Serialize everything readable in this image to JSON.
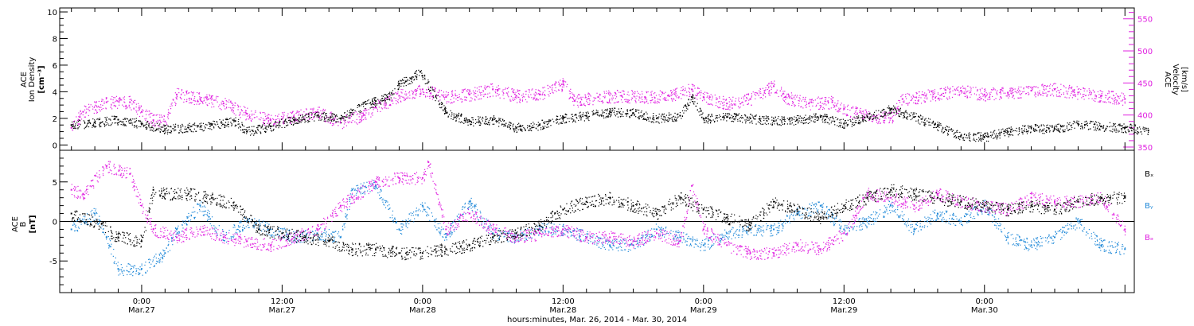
{
  "chart_data": [
    {
      "type": "scatter",
      "panel": "top",
      "y_axis_left": {
        "label_lines": [
          "ACE",
          "Ion Density",
          "[cm⁻³]"
        ],
        "range": [
          -0.4,
          10.3
        ],
        "ticks": [
          0,
          2,
          4,
          6,
          8,
          10
        ],
        "color": "#000000"
      },
      "y_axis_right": {
        "label_lines": [
          "ACE",
          "Velocity",
          "[km/s]"
        ],
        "range": [
          345,
          567
        ],
        "ticks": [
          350,
          400,
          450,
          500,
          550
        ],
        "color": "#e020e0"
      },
      "series": [
        {
          "axis": "left",
          "color": "#000000",
          "points": [
            [
              -6,
              1.5
            ],
            [
              -4,
              1.7
            ],
            [
              -2,
              1.9
            ],
            [
              0,
              1.6
            ],
            [
              2,
              1.2
            ],
            [
              4,
              1.3
            ],
            [
              6,
              1.5
            ],
            [
              8,
              1.8
            ],
            [
              9,
              1.0
            ],
            [
              11,
              1.4
            ],
            [
              13,
              1.9
            ],
            [
              15,
              2.2
            ],
            [
              17,
              2.0
            ],
            [
              18,
              2.6
            ],
            [
              20,
              3.3
            ],
            [
              21,
              3.6
            ],
            [
              22,
              4.6
            ],
            [
              23,
              5.0
            ],
            [
              23.8,
              5.5
            ],
            [
              24,
              5.2
            ],
            [
              26,
              2.4
            ],
            [
              28,
              1.8
            ],
            [
              30,
              1.9
            ],
            [
              32,
              1.3
            ],
            [
              34,
              1.5
            ],
            [
              36,
              2.0
            ],
            [
              38,
              2.2
            ],
            [
              40,
              2.5
            ],
            [
              42,
              2.4
            ],
            [
              44,
              2.0
            ],
            [
              46,
              2.2
            ],
            [
              47,
              3.6
            ],
            [
              48,
              2.0
            ],
            [
              50,
              2.1
            ],
            [
              52,
              2.0
            ],
            [
              54,
              1.8
            ],
            [
              56,
              1.9
            ],
            [
              58,
              2.1
            ],
            [
              60,
              1.6
            ],
            [
              62,
              2.1
            ],
            [
              64,
              2.7
            ],
            [
              66,
              2.1
            ],
            [
              68,
              1.4
            ],
            [
              70,
              0.7
            ],
            [
              72,
              0.6
            ],
            [
              74,
              1.0
            ],
            [
              76,
              1.3
            ],
            [
              78,
              1.2
            ],
            [
              80,
              1.6
            ],
            [
              82,
              1.4
            ],
            [
              84,
              1.3
            ],
            [
              86,
              1.1
            ]
          ]
        },
        {
          "axis": "right",
          "color": "#e020e0",
          "points": [
            [
              -6,
              380
            ],
            [
              -5,
              405
            ],
            [
              -3,
              420
            ],
            [
              -1,
              420
            ],
            [
              0,
              405
            ],
            [
              1,
              392
            ],
            [
              2,
              390
            ],
            [
              3,
              432
            ],
            [
              5,
              425
            ],
            [
              7,
              418
            ],
            [
              9,
              402
            ],
            [
              11,
              392
            ],
            [
              13,
              398
            ],
            [
              15,
              405
            ],
            [
              17,
              388
            ],
            [
              19,
              400
            ],
            [
              20,
              412
            ],
            [
              22,
              430
            ],
            [
              24,
              440
            ],
            [
              26,
              428
            ],
            [
              28,
              432
            ],
            [
              30,
              440
            ],
            [
              32,
              430
            ],
            [
              34,
              432
            ],
            [
              36,
              448
            ],
            [
              37,
              422
            ],
            [
              39,
              428
            ],
            [
              41,
              430
            ],
            [
              43,
              428
            ],
            [
              45,
              430
            ],
            [
              47,
              440
            ],
            [
              48,
              428
            ],
            [
              50,
              418
            ],
            [
              52,
              425
            ],
            [
              54,
              445
            ],
            [
              55,
              428
            ],
            [
              57,
              418
            ],
            [
              59,
              420
            ],
            [
              60,
              410
            ],
            [
              62,
              398
            ],
            [
              64,
              395
            ],
            [
              65,
              425
            ],
            [
              67,
              430
            ],
            [
              70,
              438
            ],
            [
              72,
              432
            ],
            [
              74,
              435
            ],
            [
              76,
              438
            ],
            [
              78,
              440
            ],
            [
              80,
              435
            ],
            [
              82,
              430
            ],
            [
              84,
              425
            ]
          ]
        }
      ]
    },
    {
      "type": "scatter",
      "panel": "bottom",
      "y_axis": {
        "label_lines": [
          "ACE",
          "B",
          "[nT]"
        ],
        "range": [
          -9,
          9
        ],
        "ticks": [
          -5,
          0,
          5
        ]
      },
      "series": [
        {
          "name": "Bₓ",
          "color": "#000000",
          "points": [
            [
              -6,
              1
            ],
            [
              -4,
              0
            ],
            [
              -2,
              -2
            ],
            [
              0,
              -2.5
            ],
            [
              1,
              4
            ],
            [
              2,
              3.5
            ],
            [
              4,
              3.5
            ],
            [
              6,
              3
            ],
            [
              8,
              2
            ],
            [
              10,
              -1
            ],
            [
              12,
              -1.5
            ],
            [
              14,
              -2
            ],
            [
              16,
              -2.5
            ],
            [
              18,
              -3.5
            ],
            [
              20,
              -3.5
            ],
            [
              22,
              -4
            ],
            [
              24,
              -4
            ],
            [
              26,
              -3.5
            ],
            [
              28,
              -3
            ],
            [
              30,
              -2
            ],
            [
              32,
              -1.5
            ],
            [
              34,
              -0.5
            ],
            [
              36,
              1.5
            ],
            [
              38,
              2.5
            ],
            [
              40,
              3
            ],
            [
              42,
              2
            ],
            [
              44,
              1
            ],
            [
              46,
              3
            ],
            [
              48,
              1.5
            ],
            [
              50,
              0.5
            ],
            [
              52,
              -0.5
            ],
            [
              54,
              2.5
            ],
            [
              56,
              1.5
            ],
            [
              58,
              0.5
            ],
            [
              60,
              2
            ],
            [
              62,
              3
            ],
            [
              64,
              4
            ],
            [
              66,
              3.5
            ],
            [
              68,
              3
            ],
            [
              70,
              2.5
            ],
            [
              72,
              2
            ],
            [
              74,
              1.5
            ],
            [
              76,
              2
            ],
            [
              78,
              1.5
            ],
            [
              80,
              2.5
            ],
            [
              82,
              3
            ],
            [
              84,
              3
            ]
          ]
        },
        {
          "name": "Bᵧ",
          "color": "#1e88d8",
          "points": [
            [
              -6,
              -1
            ],
            [
              -4,
              1
            ],
            [
              -3,
              -2
            ],
            [
              -2,
              -6
            ],
            [
              0,
              -6
            ],
            [
              2,
              -4
            ],
            [
              3,
              -1
            ],
            [
              5,
              2
            ],
            [
              7,
              -2
            ],
            [
              9,
              0
            ],
            [
              11,
              -1
            ],
            [
              13,
              -2
            ],
            [
              15,
              -1.5
            ],
            [
              17,
              -2
            ],
            [
              18,
              4
            ],
            [
              20,
              4.5
            ],
            [
              22,
              -1
            ],
            [
              24,
              2
            ],
            [
              26,
              -2
            ],
            [
              28,
              2.5
            ],
            [
              30,
              -1.5
            ],
            [
              32,
              -2
            ],
            [
              34,
              -1
            ],
            [
              36,
              -1
            ],
            [
              38,
              -2
            ],
            [
              40,
              -3
            ],
            [
              42,
              -3
            ],
            [
              44,
              -1
            ],
            [
              46,
              -2
            ],
            [
              48,
              -3
            ],
            [
              50,
              -1.5
            ],
            [
              52,
              -1
            ],
            [
              54,
              -1
            ],
            [
              56,
              1
            ],
            [
              58,
              2
            ],
            [
              60,
              -1
            ],
            [
              62,
              0
            ],
            [
              64,
              2
            ],
            [
              66,
              -1
            ],
            [
              68,
              1
            ],
            [
              70,
              0
            ],
            [
              72,
              2
            ],
            [
              74,
              -2
            ],
            [
              76,
              -3
            ],
            [
              78,
              -2
            ],
            [
              80,
              0
            ],
            [
              82,
              -3
            ],
            [
              84,
              -3.5
            ]
          ]
        },
        {
          "name": "Bₔ",
          "color": "#e020e0",
          "points": [
            [
              -6,
              4
            ],
            [
              -5,
              3.5
            ],
            [
              -3,
              7
            ],
            [
              -1,
              6
            ],
            [
              0,
              2
            ],
            [
              1,
              -1
            ],
            [
              3,
              -2
            ],
            [
              5,
              -1
            ],
            [
              7,
              -2
            ],
            [
              9,
              -2.5
            ],
            [
              11,
              -3
            ],
            [
              13,
              -2
            ],
            [
              15,
              -1
            ],
            [
              17,
              2
            ],
            [
              18,
              3
            ],
            [
              20,
              5
            ],
            [
              22,
              5.5
            ],
            [
              24,
              5.5
            ],
            [
              24.5,
              7.5
            ],
            [
              26,
              -1
            ],
            [
              28,
              1
            ],
            [
              30,
              -1
            ],
            [
              32,
              -2
            ],
            [
              34,
              -1.5
            ],
            [
              36,
              -1
            ],
            [
              38,
              -2
            ],
            [
              40,
              -2
            ],
            [
              42,
              -2.5
            ],
            [
              44,
              -1.5
            ],
            [
              46,
              -2.5
            ],
            [
              47,
              4.5
            ],
            [
              48,
              -1
            ],
            [
              50,
              -3
            ],
            [
              52,
              -4
            ],
            [
              54,
              -4
            ],
            [
              56,
              -3
            ],
            [
              58,
              -3.5
            ],
            [
              60,
              -1.5
            ],
            [
              62,
              3.5
            ],
            [
              64,
              3
            ],
            [
              66,
              2
            ],
            [
              68,
              3.5
            ],
            [
              70,
              2.5
            ],
            [
              72,
              2
            ],
            [
              74,
              1.5
            ],
            [
              76,
              3
            ],
            [
              78,
              2.5
            ],
            [
              80,
              2.5
            ],
            [
              82,
              3
            ],
            [
              84,
              -1
            ]
          ]
        }
      ]
    }
  ],
  "x_axis": {
    "range_hours": [
      -7,
      84.8
    ],
    "ticks": [
      {
        "time": "0:00",
        "date": "Mar.27",
        "hour": 0
      },
      {
        "time": "12:00",
        "date": "Mar.27",
        "hour": 12
      },
      {
        "time": "0:00",
        "date": "Mar.28",
        "hour": 24
      },
      {
        "time": "12:00",
        "date": "Mar.28",
        "hour": 36
      },
      {
        "time": "0:00",
        "date": "Mar.29",
        "hour": 48
      },
      {
        "time": "12:00",
        "date": "Mar.29",
        "hour": 60
      },
      {
        "time": "0:00",
        "date": "Mar.30",
        "hour": 72
      }
    ],
    "title": "hours:minutes, Mar. 26, 2014 - Mar. 30, 2014"
  }
}
